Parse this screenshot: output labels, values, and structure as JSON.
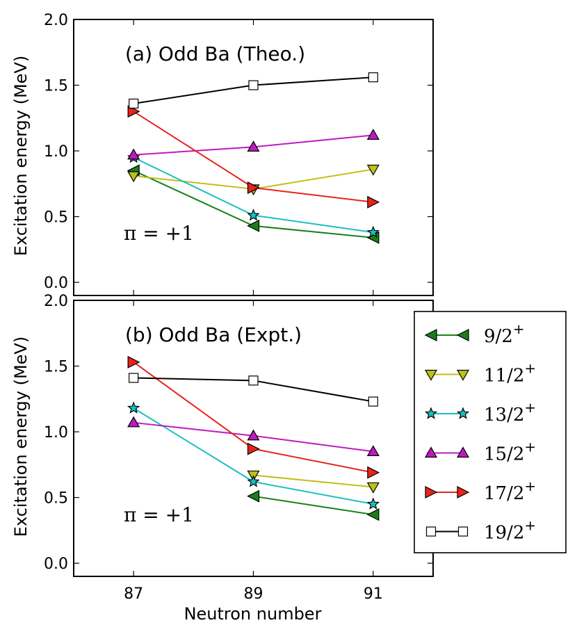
{
  "chart_data": [
    {
      "type": "line",
      "title": "(a) Odd Ba (Theo.)",
      "annotation": "π = +1",
      "xlabel": "",
      "ylabel": "Excitation energy (MeV)",
      "x": [
        87,
        89,
        91
      ],
      "xlim": [
        86,
        92
      ],
      "ylim": [
        -0.1,
        2.0
      ],
      "yticks": [
        "0.0",
        "0.5",
        "1.0",
        "1.5",
        "2.0"
      ],
      "series": [
        {
          "name": "9/2+",
          "color": "#1a7f1a",
          "marker": "triangle-left",
          "values": [
            0.85,
            0.43,
            0.34
          ]
        },
        {
          "name": "11/2+",
          "color": "#bfbf1a",
          "marker": "triangle-down",
          "values": [
            0.81,
            0.71,
            0.86
          ]
        },
        {
          "name": "13/2+",
          "color": "#1abfbf",
          "marker": "star",
          "values": [
            0.95,
            0.51,
            0.38
          ]
        },
        {
          "name": "15/2+",
          "color": "#bf1abf",
          "marker": "triangle-up",
          "values": [
            0.97,
            1.03,
            1.12
          ]
        },
        {
          "name": "17/2+",
          "color": "#e8231a",
          "marker": "triangle-right",
          "values": [
            1.3,
            0.72,
            0.61
          ]
        },
        {
          "name": "19/2+",
          "color": "#000000",
          "marker": "square",
          "values": [
            1.36,
            1.5,
            1.56
          ]
        }
      ]
    },
    {
      "type": "line",
      "title": "(b) Odd Ba (Expt.)",
      "annotation": "π = +1",
      "xlabel": "Neutron number",
      "ylabel": "Excitation energy (MeV)",
      "x": [
        87,
        89,
        91
      ],
      "xticks": [
        "87",
        "89",
        "91"
      ],
      "xlim": [
        86,
        92
      ],
      "ylim": [
        -0.1,
        2.0
      ],
      "yticks": [
        "0.0",
        "0.5",
        "1.0",
        "1.5",
        "2.0"
      ],
      "series": [
        {
          "name": "9/2+",
          "color": "#1a7f1a",
          "marker": "triangle-left",
          "values": [
            null,
            0.51,
            0.37
          ]
        },
        {
          "name": "11/2+",
          "color": "#bfbf1a",
          "marker": "triangle-down",
          "values": [
            null,
            0.67,
            0.58
          ]
        },
        {
          "name": "13/2+",
          "color": "#1abfbf",
          "marker": "star",
          "values": [
            1.18,
            0.62,
            0.45
          ]
        },
        {
          "name": "15/2+",
          "color": "#bf1abf",
          "marker": "triangle-up",
          "values": [
            1.07,
            0.97,
            0.85
          ]
        },
        {
          "name": "17/2+",
          "color": "#e8231a",
          "marker": "triangle-right",
          "values": [
            1.53,
            0.87,
            0.69
          ]
        },
        {
          "name": "19/2+",
          "color": "#000000",
          "marker": "square",
          "values": [
            1.41,
            1.39,
            1.23
          ]
        }
      ]
    }
  ],
  "legend": {
    "items": [
      {
        "base": "9/2",
        "sup": "+"
      },
      {
        "base": "11/2",
        "sup": "+"
      },
      {
        "base": "13/2",
        "sup": "+"
      },
      {
        "base": "15/2",
        "sup": "+"
      },
      {
        "base": "17/2",
        "sup": "+"
      },
      {
        "base": "19/2",
        "sup": "+"
      }
    ]
  }
}
